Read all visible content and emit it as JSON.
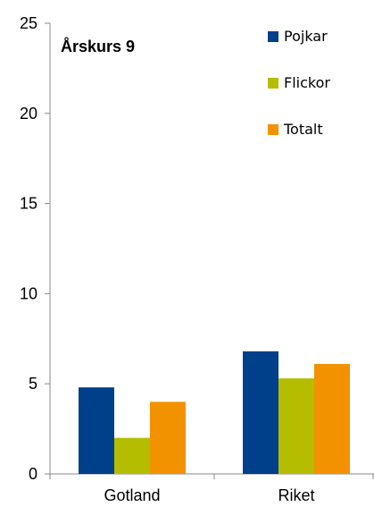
{
  "chart_data": {
    "type": "bar",
    "title": "Årskurs 9",
    "xlabel": "",
    "ylabel": "",
    "categories": [
      "Gotland",
      "Riket"
    ],
    "series": [
      {
        "name": "Pojkar",
        "values": [
          4.8,
          6.8
        ],
        "color": "#003f8a"
      },
      {
        "name": "Flickor",
        "values": [
          2.0,
          5.3
        ],
        "color": "#b5bd00"
      },
      {
        "name": "Totalt",
        "values": [
          4.0,
          6.1
        ],
        "color": "#f39200"
      }
    ],
    "ylim": [
      0,
      25
    ],
    "yticks": [
      0,
      5,
      10,
      15,
      20,
      25
    ],
    "grid": false,
    "legend_position": "top-right"
  }
}
